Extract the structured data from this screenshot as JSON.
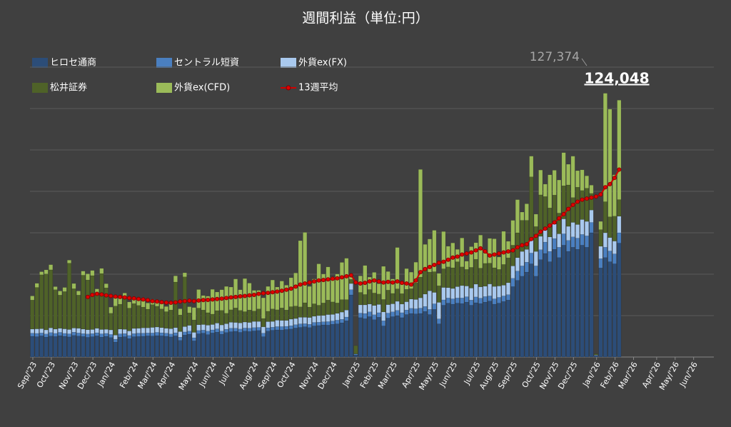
{
  "chart_data": {
    "type": "bar",
    "title": "週間利益（単位:円）",
    "annotations": [
      "127,374",
      "124,048"
    ],
    "ylim": [
      0,
      140000
    ],
    "grid_lines": [
      20000,
      40000,
      60000,
      80000,
      100000,
      120000,
      140000
    ],
    "categories": [
      "Sep/'23",
      null,
      null,
      null,
      "Oct/'23",
      null,
      null,
      null,
      null,
      "Nov/'23",
      null,
      null,
      null,
      "Dec/'23",
      null,
      null,
      null,
      "Jan/'24",
      null,
      null,
      null,
      null,
      "Feb/'24",
      null,
      null,
      null,
      "Mar/'24",
      null,
      null,
      null,
      "Apr/'24",
      null,
      null,
      null,
      null,
      "May/'24",
      null,
      null,
      null,
      "Jun/'24",
      null,
      null,
      null,
      "Jul/'24",
      null,
      null,
      null,
      null,
      "Aug/'24",
      null,
      null,
      null,
      "Sep/'24",
      null,
      null,
      null,
      "Oct/'24",
      null,
      null,
      null,
      null,
      "Nov/'24",
      null,
      null,
      null,
      "Dec/'24",
      null,
      null,
      null,
      null,
      "Jan/'25",
      null,
      null,
      null,
      "Feb/'25",
      null,
      null,
      null,
      "Mar/'25",
      null,
      null,
      null,
      null,
      "Apr/'25",
      null,
      null,
      null,
      "May/'25",
      null,
      null,
      null,
      "Jun/'25",
      null,
      null,
      null,
      null,
      "Jul/'25",
      null,
      null,
      null,
      "Aug/'25",
      null,
      null,
      null,
      "Sep/'25",
      null,
      null,
      null,
      null,
      "Oct/'25",
      null,
      null,
      null,
      "Nov/'25",
      null,
      null,
      null,
      "Dec/'25",
      null,
      null,
      null,
      null,
      "Jan/'26",
      null,
      null,
      null,
      "Feb/'26",
      null,
      null,
      null,
      "Mar/'26",
      null,
      null,
      null,
      null,
      "Apr/'26",
      null,
      null,
      null,
      "May/'26",
      null,
      null,
      null,
      "Jun/'26",
      null,
      null,
      null,
      null
    ],
    "series": [
      {
        "name": "ヒロセ通商",
        "color": "#2c4d78",
        "type": "bar",
        "values": [
          10000,
          9800,
          10200,
          9600,
          10100,
          9900,
          10300,
          10000,
          9700,
          10400,
          10100,
          9900,
          9500,
          9800,
          10200,
          9600,
          10000,
          9400,
          7200,
          9600,
          9800,
          8900,
          9800,
          9900,
          10000,
          10200,
          10100,
          10300,
          10200,
          10000,
          9700,
          10200,
          8000,
          10600,
          11000,
          7800,
          11200,
          11500,
          10800,
          11600,
          12000,
          11000,
          11800,
          12200,
          12400,
          11900,
          12500,
          12300,
          12600,
          12800,
          9800,
          12500,
          12900,
          13100,
          13000,
          13300,
          13500,
          14000,
          14300,
          14600,
          14200,
          15000,
          15200,
          15500,
          15400,
          15800,
          16000,
          16500,
          17500,
          30000,
          1000,
          19000,
          18500,
          19500,
          18000,
          19200,
          15000,
          18800,
          19500,
          20000,
          19000,
          20500,
          21000,
          20800,
          21000,
          22000,
          20500,
          23000,
          16000,
          25000,
          26000,
          25500,
          26000,
          25800,
          26500,
          25000,
          26200,
          25800,
          26500,
          27000,
          25500,
          26000,
          26800,
          27500,
          34000,
          37000,
          39000,
          41000,
          45000,
          39000,
          47000,
          50000,
          46000,
          52000,
          48000,
          54000,
          51000,
          53000,
          52000,
          54000,
          53000,
          60000,
          500,
          43000,
          48000,
          46000,
          45000,
          55000,
          null,
          null,
          null,
          null,
          null,
          null,
          null,
          null,
          null,
          null,
          null,
          null,
          null,
          null,
          null,
          null,
          null,
          null,
          null,
          null
        ]
      },
      {
        "name": "セントラル短資",
        "color": "#4a7fc0",
        "type": "bar",
        "values": [
          1500,
          1600,
          1400,
          1500,
          1700,
          1500,
          1600,
          1400,
          1500,
          1600,
          1500,
          1400,
          1600,
          1500,
          1500,
          1600,
          1400,
          1500,
          1400,
          1600,
          1500,
          1500,
          1500,
          1600,
          1500,
          1400,
          1500,
          1600,
          1500,
          1500,
          1400,
          1500,
          1600,
          1500,
          1500,
          1500,
          1600,
          1500,
          1700,
          1500,
          1600,
          1500,
          1600,
          1700,
          1500,
          1600,
          1500,
          1600,
          1600,
          1500,
          1700,
          1600,
          1500,
          1600,
          1700,
          1500,
          1600,
          1600,
          1700,
          1500,
          1600,
          1700,
          1600,
          1500,
          1700,
          1600,
          1800,
          1700,
          1800,
          2500,
          500,
          2200,
          2500,
          2300,
          2400,
          2200,
          2500,
          2400,
          2300,
          2500,
          2400,
          2200,
          2500,
          2500,
          2600,
          2400,
          2500,
          2700,
          2400,
          2600,
          2500,
          2600,
          2500,
          2700,
          2600,
          2500,
          2800,
          2600,
          2700,
          2500,
          2600,
          2800,
          2700,
          2600,
          4000,
          4500,
          5000,
          4800,
          5200,
          5000,
          4800,
          5500,
          5000,
          5200,
          5000,
          5500,
          5300,
          5000,
          5400,
          5200,
          5500,
          5000,
          300,
          4500,
          5000,
          5200,
          4800,
          5000,
          null,
          null,
          null,
          null,
          null,
          null,
          null,
          null,
          null,
          null,
          null,
          null,
          null,
          null,
          null,
          null,
          null,
          null,
          null,
          null
        ]
      },
      {
        "name": "外貨ex(FX)",
        "color": "#a9c9ee",
        "type": "bar",
        "values": [
          2000,
          2200,
          2100,
          2000,
          2300,
          2100,
          2000,
          2200,
          2100,
          2000,
          2300,
          2200,
          2100,
          2000,
          2200,
          2100,
          2000,
          2200,
          2000,
          2300,
          2100,
          2200,
          2500,
          2400,
          2600,
          2500,
          2700,
          2600,
          2500,
          2400,
          2600,
          2500,
          2700,
          2600,
          2800,
          2600,
          2800,
          2700,
          2900,
          2600,
          2800,
          3000,
          2700,
          2900,
          2800,
          3000,
          2900,
          2800,
          3000,
          2900,
          3100,
          3000,
          2800,
          3100,
          3000,
          2900,
          3200,
          3000,
          3200,
          3100,
          3300,
          3000,
          3200,
          3100,
          3400,
          3200,
          3300,
          3500,
          3400,
          3000,
          0,
          4000,
          4200,
          3800,
          4500,
          4000,
          4300,
          4100,
          3900,
          4400,
          4200,
          4000,
          4500,
          4500,
          5000,
          6000,
          9000,
          5500,
          8000,
          6000,
          5000,
          5000,
          5500,
          6000,
          5200,
          5800,
          6200,
          5500,
          5000,
          5800,
          6000,
          5500,
          5200,
          5800,
          6000,
          6500,
          7000,
          6200,
          6800,
          7000,
          6500,
          6000,
          7000,
          7000,
          6500,
          7200,
          6800,
          7000,
          6600,
          7200,
          7000,
          6000,
          200,
          6000,
          7000,
          6500,
          6200,
          8000,
          null,
          null,
          null,
          null,
          null,
          null,
          null,
          null,
          null,
          null,
          null,
          null,
          null,
          null,
          null,
          null,
          null,
          null,
          null,
          null
        ]
      },
      {
        "name": "松井証券",
        "color": "#4f6228",
        "type": "bar",
        "values": [
          14000,
          20000,
          26000,
          27000,
          28000,
          19000,
          16000,
          18000,
          32000,
          19000,
          16000,
          26000,
          24000,
          26000,
          17000,
          27000,
          20000,
          8000,
          14000,
          12000,
          15000,
          11000,
          12000,
          11000,
          10000,
          9000,
          11000,
          10000,
          9000,
          8000,
          9000,
          22000,
          8000,
          24000,
          6000,
          6000,
          8000,
          7000,
          6000,
          5000,
          6000,
          7000,
          5000,
          6000,
          7000,
          6000,
          5000,
          6000,
          5000,
          6000,
          4000,
          5000,
          6000,
          5000,
          6000,
          5000,
          6000,
          6000,
          5000,
          7000,
          5000,
          6000,
          5000,
          6000,
          7000,
          6000,
          5000,
          6000,
          5000,
          2000,
          4000,
          6000,
          5000,
          7000,
          6000,
          5000,
          6000,
          7000,
          5000,
          6000,
          5000,
          6000,
          5000,
          8000,
          10000,
          12000,
          9000,
          10000,
          8000,
          9000,
          10000,
          10000,
          12000,
          9000,
          8000,
          10000,
          12000,
          9000,
          11000,
          10000,
          9000,
          8000,
          10000,
          12000,
          10000,
          12000,
          15000,
          14000,
          30000,
          12000,
          20000,
          16000,
          14000,
          14000,
          10000,
          16000,
          20000,
          12000,
          18000,
          14000,
          16000,
          8000,
          500,
          8000,
          15000,
          10000,
          12000,
          8000,
          null,
          null,
          null,
          null,
          null,
          null,
          null,
          null,
          null,
          null,
          null,
          null,
          null,
          null,
          null,
          null,
          null,
          null,
          null,
          null
        ]
      },
      {
        "name": "外貨ex(CFD)",
        "color": "#9bbb59",
        "type": "bar",
        "values": [
          2000,
          2000,
          1500,
          2000,
          2500,
          1500,
          2000,
          2000,
          1500,
          2500,
          2000,
          2000,
          3000,
          2500,
          2000,
          2500,
          2000,
          3000,
          4000,
          3000,
          2500,
          3000,
          3000,
          3500,
          3000,
          3000,
          2500,
          2000,
          2500,
          2500,
          3000,
          3000,
          3000,
          2000,
          3000,
          6000,
          9000,
          7000,
          8000,
          12000,
          9000,
          10000,
          13000,
          11000,
          14000,
          10000,
          16000,
          13000,
          10000,
          9000,
          10000,
          12000,
          14000,
          11000,
          13000,
          12000,
          14000,
          16000,
          32000,
          34000,
          10000,
          12000,
          20000,
          14000,
          16000,
          12000,
          14000,
          18000,
          20000,
          2000,
          0,
          8000,
          14000,
          6000,
          10000,
          5000,
          16000,
          9000,
          7000,
          20000,
          5000,
          10000,
          8000,
          10000,
          52000,
          12000,
          16000,
          20000,
          6000,
          18000,
          10000,
          12000,
          6000,
          14000,
          4000,
          10000,
          8000,
          16000,
          6000,
          12000,
          14000,
          6000,
          16000,
          8000,
          12000,
          16000,
          4000,
          8000,
          10000,
          6000,
          12000,
          6000,
          16000,
          12000,
          16000,
          16000,
          10000,
          20000,
          8000,
          10000,
          6000,
          4000,
          0,
          4000,
          52374,
          52000,
          20000,
          48048,
          null,
          null,
          null,
          null,
          null,
          null,
          null,
          null,
          null,
          null,
          null,
          null,
          null,
          null,
          null,
          null,
          null,
          null,
          null,
          null
        ]
      },
      {
        "name": "13週平均",
        "color": "#d00000",
        "type": "line",
        "values": [
          null,
          null,
          null,
          null,
          null,
          null,
          null,
          null,
          null,
          null,
          null,
          null,
          29000,
          30000,
          30500,
          30200,
          29800,
          29500,
          29200,
          29000,
          28800,
          28500,
          28300,
          28000,
          27800,
          27500,
          27000,
          26800,
          26500,
          26300,
          26200,
          26400,
          26800,
          27000,
          27200,
          27000,
          27300,
          27500,
          27600,
          27800,
          28000,
          28200,
          28500,
          28800,
          29000,
          29300,
          29500,
          29800,
          30000,
          30500,
          30800,
          31000,
          31300,
          31600,
          32000,
          32500,
          33000,
          34000,
          35000,
          35500,
          36000,
          36500,
          37000,
          37200,
          37500,
          37800,
          38000,
          38500,
          39000,
          39500,
          36000,
          35500,
          35800,
          36500,
          37000,
          36500,
          36000,
          36300,
          36000,
          36500,
          35800,
          35500,
          35000,
          37000,
          41000,
          42500,
          43500,
          44500,
          45500,
          46000,
          47000,
          48000,
          48500,
          49500,
          50000,
          50500,
          51500,
          52500,
          51000,
          49000,
          49500,
          50000,
          50500,
          51000,
          51500,
          53000,
          54000,
          54500,
          57000,
          58500,
          60500,
          62000,
          63500,
          65000,
          67000,
          69000,
          71500,
          73500,
          75000,
          76000,
          76500,
          77000,
          77500,
          78500,
          82000,
          83500,
          86500,
          90500,
          null,
          null,
          null,
          null,
          null,
          null,
          null,
          null,
          null,
          null,
          null,
          null,
          null,
          null,
          null,
          null,
          null,
          null,
          null,
          null
        ]
      }
    ]
  }
}
